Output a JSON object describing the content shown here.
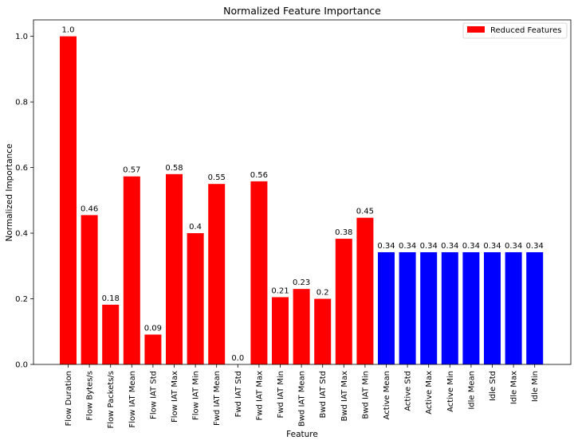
{
  "chart_data": {
    "type": "bar",
    "title": "Normalized Feature Importance",
    "xlabel": "Feature",
    "ylabel": "Normalized Importance",
    "ylim": [
      0,
      1.05
    ],
    "yticks": [
      0.0,
      0.2,
      0.4,
      0.6,
      0.8,
      1.0
    ],
    "ytick_labels": [
      "0.0",
      "0.2",
      "0.4",
      "0.6",
      "0.8",
      "1.0"
    ],
    "grid": false,
    "legend": {
      "position": "top-right",
      "entries": [
        {
          "label": "Reduced Features",
          "color": "#ff0000"
        }
      ]
    },
    "categories": [
      "Flow Duration",
      "Flow Bytes/s",
      "Flow Packets/s",
      "Flow IAT Mean",
      "Flow IAT Std",
      "Flow IAT Max",
      "Flow IAT Min",
      "Fwd IAT Mean",
      "Fwd IAT Std",
      "Fwd IAT Max",
      "Fwd IAT Min",
      "Bwd IAT Mean",
      "Bwd IAT Std",
      "Bwd IAT Max",
      "Bwd IAT Min",
      "Active Mean",
      "Active Std",
      "Active Max",
      "Active Min",
      "Idle Mean",
      "Idle Std",
      "Idle Max",
      "Idle Min"
    ],
    "values": [
      1.0,
      0.455,
      0.182,
      0.573,
      0.091,
      0.58,
      0.4,
      0.55,
      0.0,
      0.558,
      0.205,
      0.23,
      0.2,
      0.383,
      0.447,
      0.342,
      0.342,
      0.342,
      0.342,
      0.342,
      0.342,
      0.342,
      0.342
    ],
    "value_labels": [
      "1.0",
      "0.46",
      "0.18",
      "0.57",
      "0.09",
      "0.58",
      "0.4",
      "0.55",
      "0.0",
      "0.56",
      "0.21",
      "0.23",
      "0.2",
      "0.38",
      "0.45",
      "0.34",
      "0.34",
      "0.34",
      "0.34",
      "0.34",
      "0.34",
      "0.34",
      "0.34"
    ],
    "colors": [
      "#ff0000",
      "#ff0000",
      "#ff0000",
      "#ff0000",
      "#ff0000",
      "#ff0000",
      "#ff0000",
      "#ff0000",
      "#ff0000",
      "#ff0000",
      "#ff0000",
      "#ff0000",
      "#ff0000",
      "#ff0000",
      "#ff0000",
      "#0000ff",
      "#0000ff",
      "#0000ff",
      "#0000ff",
      "#0000ff",
      "#0000ff",
      "#0000ff",
      "#0000ff"
    ]
  }
}
